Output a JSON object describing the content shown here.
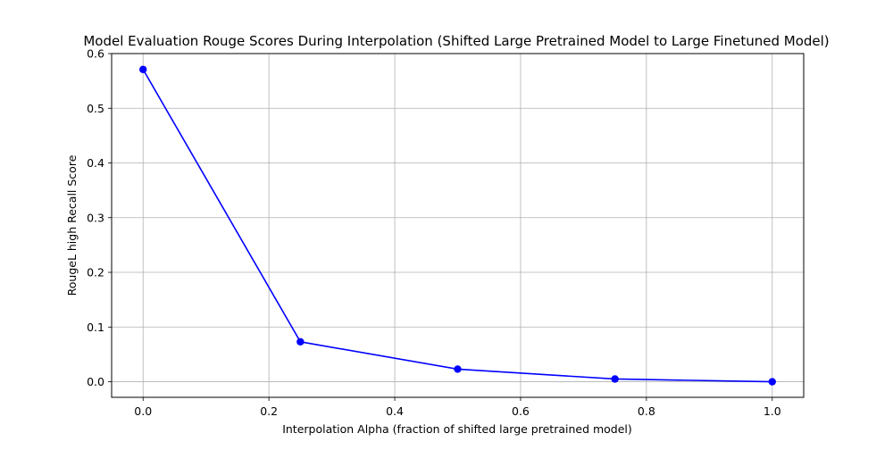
{
  "chart_data": {
    "type": "line",
    "title": "Model Evaluation Rouge Scores During Interpolation (Shifted Large Pretrained Model to Large Finetuned Model)",
    "xlabel": "Interpolation Alpha (fraction of shifted large pretrained model)",
    "ylabel": "RougeL high Recall Score",
    "xlim": [
      -0.05,
      1.05
    ],
    "ylim": [
      -0.0285,
      0.6
    ],
    "xticks": [
      0.0,
      0.2,
      0.4,
      0.6,
      0.8,
      1.0
    ],
    "xtick_labels": [
      "0.0",
      "0.2",
      "0.4",
      "0.6",
      "0.8",
      "1.0"
    ],
    "yticks": [
      0.0,
      0.1,
      0.2,
      0.3,
      0.4,
      0.5,
      0.6
    ],
    "ytick_labels": [
      "0.0",
      "0.1",
      "0.2",
      "0.3",
      "0.4",
      "0.5",
      "0.6"
    ],
    "grid": true,
    "series": [
      {
        "color": "#0000ff",
        "marker": "circle",
        "x": [
          0.0,
          0.25,
          0.5,
          0.75,
          1.0
        ],
        "y": [
          0.571,
          0.073,
          0.023,
          0.005,
          0.0
        ]
      }
    ]
  }
}
